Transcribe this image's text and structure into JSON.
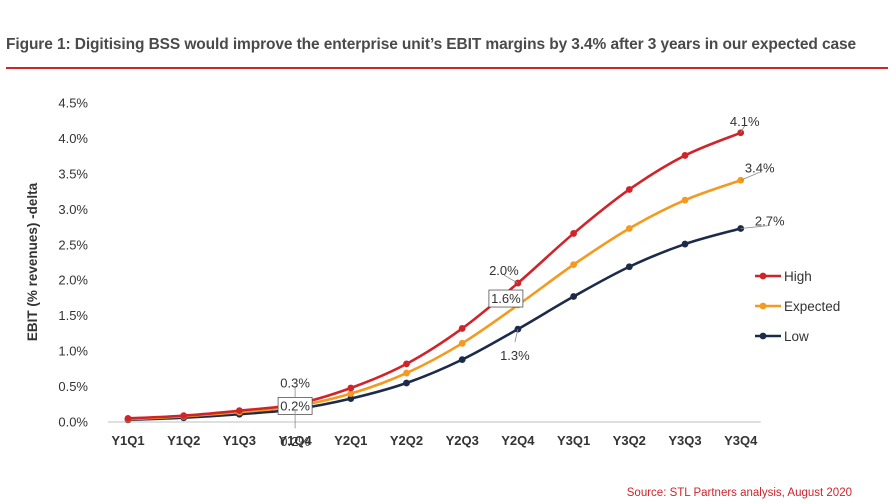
{
  "title": "Figure 1: Digitising BSS would improve the enterprise unit’s EBIT margins by 3.4% after 3 years in our expected case",
  "source": "Source: STL Partners analysis, August 2020",
  "colors": {
    "high": "#d0242b",
    "expected": "#f39a1f",
    "low": "#1c2b4a",
    "accent": "#d0242b"
  },
  "chart_data": {
    "type": "line",
    "title": "",
    "xlabel": "",
    "ylabel": "EBIT (% revenues) -delta",
    "categories": [
      "Y1Q1",
      "Y1Q2",
      "Y1Q3",
      "Y1Q4",
      "Y2Q1",
      "Y2Q2",
      "Y2Q3",
      "Y2Q4",
      "Y3Q1",
      "Y3Q2",
      "Y3Q3",
      "Y3Q4"
    ],
    "ylim": [
      0,
      4.5
    ],
    "yticks": [
      0,
      0.5,
      1.0,
      1.5,
      2.0,
      2.5,
      3.0,
      3.5,
      4.0,
      4.5
    ],
    "ytick_labels": [
      "0.0%",
      "0.5%",
      "1.0%",
      "1.5%",
      "2.0%",
      "2.5%",
      "3.0%",
      "3.5%",
      "4.0%",
      "4.5%"
    ],
    "grid": false,
    "legend_position": "right",
    "series": [
      {
        "name": "High",
        "color": "#d0242b",
        "values": [
          0.05,
          0.09,
          0.16,
          0.25,
          0.48,
          0.82,
          1.32,
          1.96,
          2.66,
          3.28,
          3.76,
          4.08
        ]
      },
      {
        "name": "Expected",
        "color": "#f39a1f",
        "values": [
          0.04,
          0.08,
          0.14,
          0.22,
          0.4,
          0.69,
          1.11,
          1.65,
          2.22,
          2.73,
          3.13,
          3.41
        ]
      },
      {
        "name": "Low",
        "color": "#1c2b4a",
        "values": [
          0.03,
          0.06,
          0.11,
          0.18,
          0.33,
          0.55,
          0.88,
          1.31,
          1.77,
          2.19,
          2.51,
          2.73
        ]
      }
    ],
    "annotations": [
      {
        "text": "0.3%",
        "series": "High",
        "category": "Y1Q4"
      },
      {
        "text": "0.2%",
        "series": "Expected",
        "category": "Y1Q4"
      },
      {
        "text": "0.2%",
        "series": "Low",
        "category": "Y1Q4"
      },
      {
        "text": "2.0%",
        "series": "High",
        "category": "Y2Q4"
      },
      {
        "text": "1.6%",
        "series": "Expected",
        "category": "Y2Q4"
      },
      {
        "text": "1.3%",
        "series": "Low",
        "category": "Y2Q4"
      },
      {
        "text": "4.1%",
        "series": "High",
        "category": "Y3Q4"
      },
      {
        "text": "3.4%",
        "series": "Expected",
        "category": "Y3Q4"
      },
      {
        "text": "2.7%",
        "series": "Low",
        "category": "Y3Q4"
      }
    ]
  }
}
